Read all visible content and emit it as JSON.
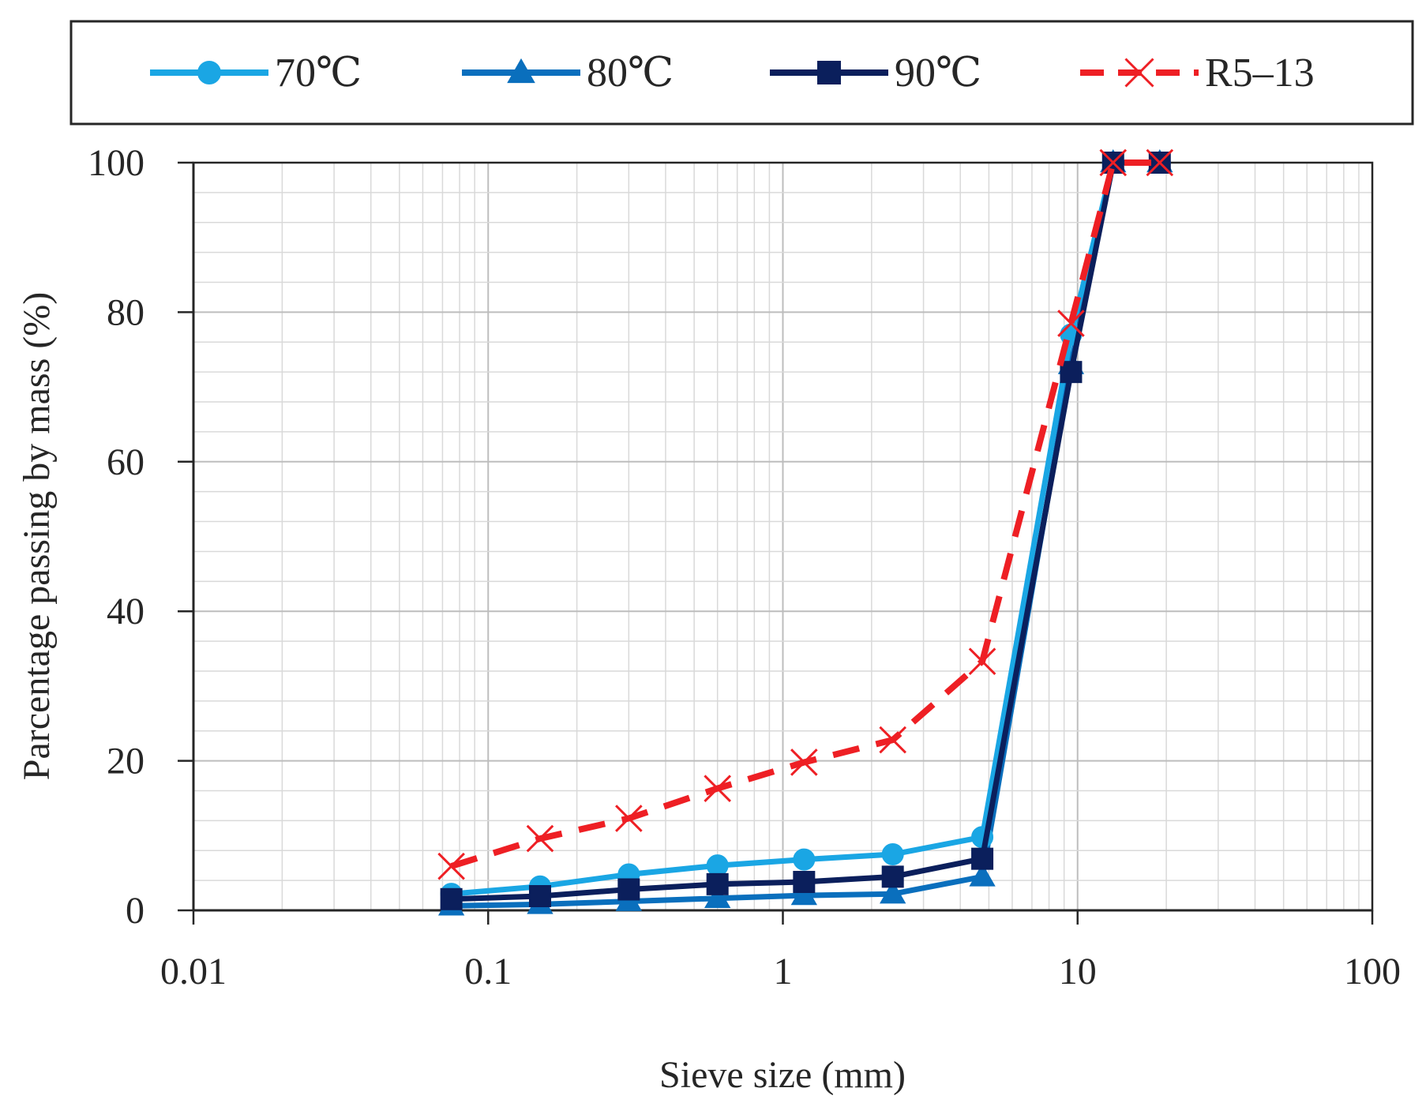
{
  "chart_data": {
    "type": "line",
    "x_scale": "log",
    "xlabel": "Sieve size (mm)",
    "ylabel": "Parcentage passing by mass (%)",
    "xlim": [
      0.01,
      100
    ],
    "ylim": [
      0,
      100
    ],
    "x_ticks": [
      {
        "value": 0.01,
        "label": "0.01"
      },
      {
        "value": 0.1,
        "label": "0.1"
      },
      {
        "value": 1,
        "label": "1"
      },
      {
        "value": 10,
        "label": "10"
      },
      {
        "value": 100,
        "label": "100"
      }
    ],
    "y_ticks": [
      {
        "value": 0,
        "label": "0"
      },
      {
        "value": 20,
        "label": "20"
      },
      {
        "value": 40,
        "label": "40"
      },
      {
        "value": 60,
        "label": "60"
      },
      {
        "value": 80,
        "label": "80"
      },
      {
        "value": 100,
        "label": "100"
      }
    ],
    "grid": true,
    "legend_position": "top",
    "x": [
      0.075,
      0.15,
      0.3,
      0.6,
      1.18,
      2.36,
      4.75,
      9.5,
      13.2,
      19
    ],
    "series": [
      {
        "name": "70℃",
        "color": "#1aa6e4",
        "marker": "circle",
        "dashed": false,
        "values": [
          2.2,
          3.2,
          4.8,
          6.0,
          6.8,
          7.5,
          9.8,
          77,
          100,
          100
        ]
      },
      {
        "name": "80℃",
        "color": "#0a6fbd",
        "marker": "triangle",
        "dashed": false,
        "values": [
          0.6,
          0.8,
          1.2,
          1.6,
          2.0,
          2.2,
          4.5,
          73,
          100,
          100
        ]
      },
      {
        "name": "90℃",
        "color": "#0b1f5c",
        "marker": "square",
        "dashed": false,
        "values": [
          1.5,
          1.9,
          2.8,
          3.5,
          3.8,
          4.5,
          6.9,
          72,
          100,
          100
        ]
      },
      {
        "name": "R5–13",
        "color": "#ee1f24",
        "marker": "x",
        "dashed": true,
        "values": [
          5.9,
          9.6,
          12.3,
          16.3,
          19.8,
          22.8,
          33.3,
          78.5,
          100,
          100
        ]
      }
    ]
  }
}
